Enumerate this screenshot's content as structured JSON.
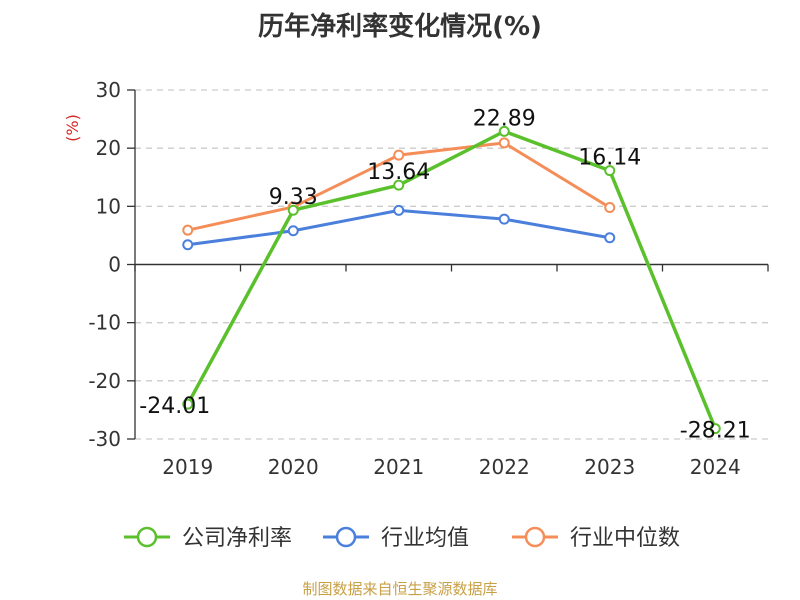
{
  "title": "历年净利率变化情况(%)",
  "source": "制图数据来自恒生聚源数据库",
  "chart_data": {
    "type": "line",
    "title": "历年净利率变化情况(%)",
    "yunit": "(%)",
    "categories": [
      "2019",
      "2020",
      "2021",
      "2022",
      "2023",
      "2024"
    ],
    "ylim": [
      -30,
      30
    ],
    "yticks": [
      30,
      20,
      10,
      0,
      -10,
      -20,
      -30
    ],
    "grid": true,
    "legend_position": "bottom",
    "series": [
      {
        "name": "公司净利率",
        "color": "#5ac02c",
        "values": [
          -24.01,
          9.33,
          13.64,
          22.89,
          16.14,
          -28.21
        ],
        "labels": [
          "-24.01",
          "9.33",
          "13.64",
          "22.89",
          "16.14",
          "-28.21"
        ]
      },
      {
        "name": "行业均值",
        "color": "#4a7fdc",
        "values": [
          3.4,
          5.8,
          9.3,
          7.8,
          4.6,
          null
        ]
      },
      {
        "name": "行业中位数",
        "color": "#f58d58",
        "values": [
          5.9,
          9.9,
          18.8,
          20.9,
          9.8,
          null
        ]
      }
    ]
  }
}
